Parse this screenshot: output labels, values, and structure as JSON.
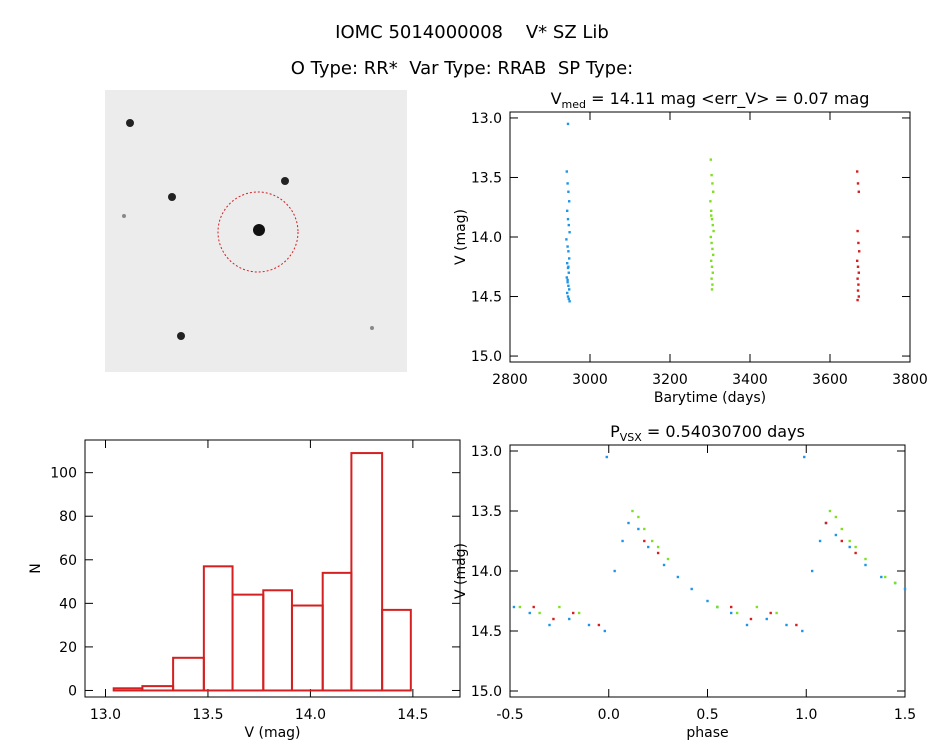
{
  "title": "IOMC 5014000008    V* SZ Lib",
  "subtitle": "O Type: RR*  Var Type: RRAB  SP Type:",
  "chart_data": [
    {
      "type": "scatter",
      "title": "V",
      "title_subscript": "med",
      "title_suffix": " = 14.11 mag <err_V> = 0.07 mag",
      "x_label": "Barytime (days)",
      "y_label": "V (mag)",
      "xlim": [
        2800,
        3800
      ],
      "xticks": [
        2800,
        3000,
        3200,
        3400,
        3600,
        3800
      ],
      "ylim": [
        15.05,
        12.95
      ],
      "yticks": [
        {
          "value": 13,
          "label": "13.0"
        },
        13.5,
        {
          "value": 14,
          "label": "14.0"
        },
        14.5,
        {
          "value": 15,
          "label": "15.0"
        }
      ],
      "series": [
        {
          "color": "#1e96e6",
          "x": [
            2942,
            2944,
            2946,
            2948,
            2943,
            2945,
            2947,
            2949,
            2941,
            2944,
            2946,
            2948,
            2943,
            2945,
            2947,
            2942,
            2944,
            2946,
            2948,
            2943,
            2945,
            2947,
            2949,
            2944,
            2946,
            2945
          ],
          "y": [
            13.45,
            13.55,
            13.62,
            13.7,
            13.78,
            13.85,
            13.9,
            13.96,
            14.02,
            14.08,
            14.12,
            14.18,
            14.22,
            14.26,
            14.3,
            14.34,
            14.38,
            14.41,
            14.44,
            14.47,
            14.5,
            14.52,
            14.54,
            14.36,
            14.25,
            13.05
          ]
        },
        {
          "color": "#7ee01e",
          "x": [
            3302,
            3304,
            3306,
            3308,
            3301,
            3303,
            3305,
            3307,
            3309,
            3302,
            3304,
            3306,
            3308,
            3303,
            3305,
            3307,
            3304,
            3306,
            3305,
            3303
          ],
          "y": [
            13.35,
            13.48,
            13.55,
            13.62,
            13.7,
            13.78,
            13.85,
            13.9,
            13.95,
            14.0,
            14.05,
            14.1,
            14.15,
            14.2,
            14.25,
            14.3,
            14.35,
            14.4,
            14.44,
            13.82
          ]
        },
        {
          "color": "#d42020",
          "x": [
            3668,
            3670,
            3672,
            3669,
            3671,
            3673,
            3668,
            3670,
            3672,
            3669,
            3671,
            3670,
            3672,
            3669
          ],
          "y": [
            13.45,
            13.55,
            13.62,
            13.95,
            14.05,
            14.12,
            14.2,
            14.25,
            14.3,
            14.35,
            14.4,
            14.45,
            14.5,
            14.53
          ]
        }
      ]
    },
    {
      "type": "histogram",
      "x_label": "V (mag)",
      "y_label": "N",
      "xlim": [
        12.9,
        14.73
      ],
      "xticks": [
        {
          "value": 13,
          "label": "13.0"
        },
        13.5,
        {
          "value": 14,
          "label": "14.0"
        },
        14.5
      ],
      "ylim": [
        -3,
        115
      ],
      "yticks": [
        0,
        20,
        40,
        60,
        80,
        100
      ],
      "color": "#d42020",
      "bins": [
        13.04,
        13.18,
        13.33,
        13.48,
        13.62,
        13.77,
        13.91,
        14.06,
        14.2,
        14.35,
        14.49
      ],
      "counts": [
        1,
        2,
        15,
        57,
        44,
        46,
        39,
        54,
        109,
        37
      ]
    },
    {
      "type": "scatter",
      "title": "P",
      "title_subscript": "VSX",
      "title_suffix": " = 0.54030700 days",
      "x_label": "phase",
      "y_label": "V (mag)",
      "xlim": [
        -0.5,
        1.5
      ],
      "xticks": [
        -0.5,
        {
          "value": 0,
          "label": "0.0"
        },
        0.5,
        {
          "value": 1,
          "label": "1.0"
        },
        1.5
      ],
      "ylim": [
        15.05,
        12.95
      ],
      "yticks": [
        {
          "value": 13,
          "label": "13.0"
        },
        13.5,
        {
          "value": 14,
          "label": "14.0"
        },
        14.5,
        {
          "value": 15,
          "label": "15.0"
        }
      ],
      "series": [
        {
          "color": "#1e96e6",
          "x": [
            -0.48,
            -0.4,
            -0.3,
            -0.2,
            -0.1,
            -0.02,
            0.03,
            0.07,
            0.1,
            0.15,
            0.2,
            0.28,
            0.35,
            0.42,
            0.5,
            0.55,
            0.62,
            0.7,
            0.8,
            0.9,
            0.98,
            1.03,
            1.07,
            1.1,
            1.15,
            1.22,
            1.3,
            1.38,
            1.45,
            1.5,
            -0.01,
            0.99
          ],
          "y": [
            14.3,
            14.35,
            14.45,
            14.4,
            14.45,
            14.5,
            14.0,
            13.75,
            13.6,
            13.65,
            13.8,
            13.95,
            14.05,
            14.15,
            14.25,
            14.3,
            14.35,
            14.45,
            14.4,
            14.45,
            14.5,
            14.0,
            13.75,
            13.6,
            13.7,
            13.8,
            13.95,
            14.05,
            14.1,
            14.15,
            13.05,
            13.05
          ]
        },
        {
          "color": "#7ee01e",
          "x": [
            -0.45,
            -0.35,
            -0.25,
            -0.15,
            0.12,
            0.15,
            0.18,
            0.22,
            0.25,
            0.3,
            0.55,
            0.65,
            0.75,
            0.85,
            1.12,
            1.15,
            1.18,
            1.22,
            1.25,
            1.3,
            1.4,
            1.45
          ],
          "y": [
            14.3,
            14.35,
            14.3,
            14.35,
            13.5,
            13.55,
            13.65,
            13.75,
            13.8,
            13.9,
            14.3,
            14.35,
            14.3,
            14.35,
            13.5,
            13.55,
            13.65,
            13.75,
            13.8,
            13.9,
            14.05,
            14.1
          ]
        },
        {
          "color": "#d42020",
          "x": [
            -0.38,
            -0.28,
            -0.18,
            -0.05,
            0.18,
            0.25,
            0.62,
            0.72,
            0.82,
            0.95,
            1.1,
            1.18,
            1.25
          ],
          "y": [
            14.3,
            14.4,
            14.35,
            14.45,
            13.75,
            13.85,
            14.3,
            14.4,
            14.35,
            14.45,
            13.6,
            13.75,
            13.85
          ]
        }
      ]
    }
  ]
}
